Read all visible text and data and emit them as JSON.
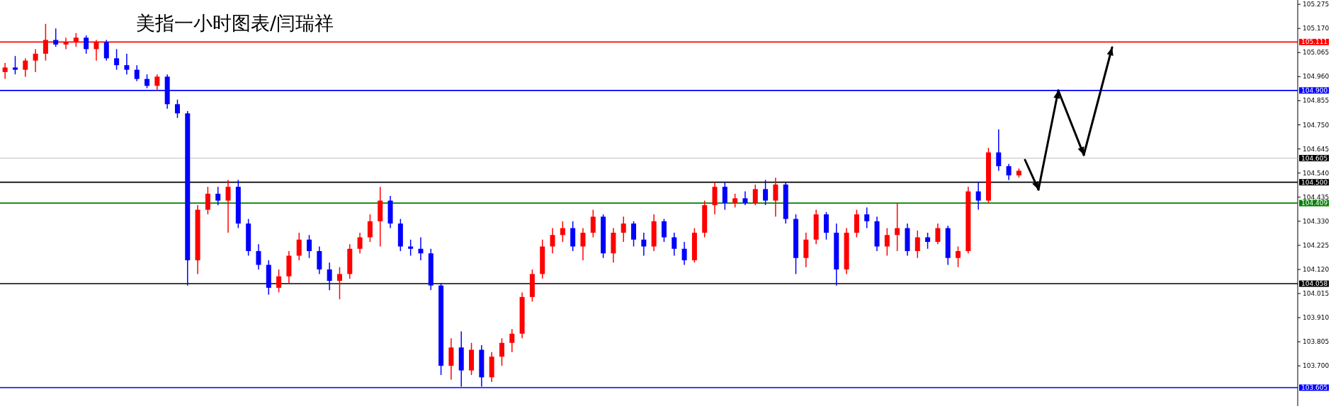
{
  "chart_data": {
    "type": "candlestick",
    "title": "美指一小时图表/闫瑞祥",
    "categories": [
      null,
      null,
      null,
      null,
      null,
      null,
      null,
      null,
      null,
      null,
      null,
      null,
      null,
      null,
      null,
      null,
      null,
      null,
      null,
      null,
      null,
      null,
      null,
      null,
      null,
      null,
      null,
      null,
      null,
      null,
      null,
      null,
      null,
      null,
      null,
      null,
      null,
      null,
      null,
      null,
      null,
      null,
      null,
      null,
      null,
      null,
      null,
      null,
      null,
      null,
      null,
      null,
      null,
      null,
      null,
      null,
      null,
      null,
      null,
      null,
      null,
      null,
      null,
      null,
      null,
      null,
      null,
      null,
      null,
      null,
      null,
      null,
      null,
      null,
      null,
      null,
      null,
      null,
      null,
      null,
      null,
      null,
      null,
      null,
      null,
      null,
      null,
      null,
      null,
      null,
      null,
      null,
      null,
      null,
      null,
      null,
      null,
      null,
      null,
      null,
      null,
      null,
      null,
      null,
      null,
      null,
      null,
      null,
      null,
      null,
      null,
      null,
      null,
      null,
      null,
      null,
      null,
      null,
      null,
      null,
      null,
      null,
      null,
      null,
      null,
      null,
      null,
      null
    ],
    "ohlc": [
      [
        104.98,
        105.02,
        104.95,
        105.0
      ],
      [
        105.0,
        105.05,
        104.97,
        104.99
      ],
      [
        104.99,
        105.04,
        104.96,
        105.03
      ],
      [
        105.03,
        105.08,
        104.98,
        105.06
      ],
      [
        105.06,
        105.19,
        105.03,
        105.12
      ],
      [
        105.12,
        105.17,
        105.09,
        105.1
      ],
      [
        105.1,
        105.13,
        105.08,
        105.11
      ],
      [
        105.11,
        105.15,
        105.09,
        105.13
      ],
      [
        105.13,
        105.14,
        105.06,
        105.08
      ],
      [
        105.08,
        105.12,
        105.03,
        105.11
      ],
      [
        105.11,
        105.12,
        105.03,
        105.04
      ],
      [
        105.04,
        105.08,
        104.99,
        105.01
      ],
      [
        105.01,
        105.06,
        104.97,
        104.99
      ],
      [
        104.99,
        105.01,
        104.94,
        104.95
      ],
      [
        104.95,
        104.97,
        104.91,
        104.92
      ],
      [
        104.92,
        104.97,
        104.9,
        104.96
      ],
      [
        104.96,
        104.97,
        104.82,
        104.84
      ],
      [
        104.84,
        104.86,
        104.78,
        104.8
      ],
      [
        104.8,
        104.81,
        104.05,
        104.16
      ],
      [
        104.16,
        104.4,
        104.1,
        104.38
      ],
      [
        104.38,
        104.48,
        104.36,
        104.45
      ],
      [
        104.45,
        104.48,
        104.4,
        104.42
      ],
      [
        104.42,
        104.51,
        104.28,
        104.48
      ],
      [
        104.48,
        104.51,
        104.3,
        104.32
      ],
      [
        104.32,
        104.34,
        104.18,
        104.2
      ],
      [
        104.2,
        104.23,
        104.12,
        104.14
      ],
      [
        104.14,
        104.16,
        104.01,
        104.04
      ],
      [
        104.04,
        104.12,
        104.02,
        104.09
      ],
      [
        104.09,
        104.2,
        104.06,
        104.18
      ],
      [
        104.18,
        104.28,
        104.16,
        104.25
      ],
      [
        104.25,
        104.27,
        104.17,
        104.2
      ],
      [
        104.2,
        104.22,
        104.1,
        104.12
      ],
      [
        104.12,
        104.15,
        104.03,
        104.07
      ],
      [
        104.07,
        104.13,
        103.99,
        104.1
      ],
      [
        104.1,
        104.23,
        104.08,
        104.21
      ],
      [
        104.21,
        104.28,
        104.19,
        104.26
      ],
      [
        104.26,
        104.36,
        104.24,
        104.33
      ],
      [
        104.33,
        104.48,
        104.22,
        104.42
      ],
      [
        104.42,
        104.44,
        104.3,
        104.32
      ],
      [
        104.32,
        104.34,
        104.2,
        104.22
      ],
      [
        104.22,
        104.25,
        104.18,
        104.21
      ],
      [
        104.21,
        104.26,
        104.16,
        104.19
      ],
      [
        104.19,
        104.21,
        104.03,
        104.05
      ],
      [
        104.05,
        104.06,
        103.66,
        103.7
      ],
      [
        103.7,
        103.82,
        103.64,
        103.78
      ],
      [
        103.78,
        103.85,
        103.61,
        103.68
      ],
      [
        103.68,
        103.8,
        103.66,
        103.77
      ],
      [
        103.77,
        103.79,
        103.61,
        103.65
      ],
      [
        103.65,
        103.76,
        103.63,
        103.74
      ],
      [
        103.74,
        103.82,
        103.7,
        103.8
      ],
      [
        103.8,
        103.86,
        103.76,
        103.84
      ],
      [
        103.84,
        104.02,
        103.82,
        104.0
      ],
      [
        104.0,
        104.12,
        103.98,
        104.1
      ],
      [
        104.1,
        104.25,
        104.08,
        104.22
      ],
      [
        104.22,
        104.3,
        104.19,
        104.27
      ],
      [
        104.27,
        104.33,
        104.24,
        104.3
      ],
      [
        104.3,
        104.33,
        104.2,
        104.22
      ],
      [
        104.22,
        104.3,
        104.16,
        104.28
      ],
      [
        104.28,
        104.38,
        104.26,
        104.35
      ],
      [
        104.35,
        104.36,
        104.17,
        104.19
      ],
      [
        104.19,
        104.3,
        104.15,
        104.28
      ],
      [
        104.28,
        104.35,
        104.24,
        104.32
      ],
      [
        104.32,
        104.33,
        104.22,
        104.25
      ],
      [
        104.25,
        104.28,
        104.18,
        104.22
      ],
      [
        104.22,
        104.36,
        104.2,
        104.33
      ],
      [
        104.33,
        104.34,
        104.24,
        104.26
      ],
      [
        104.26,
        104.28,
        104.18,
        104.21
      ],
      [
        104.21,
        104.24,
        104.14,
        104.16
      ],
      [
        104.16,
        104.3,
        104.15,
        104.28
      ],
      [
        104.28,
        104.42,
        104.26,
        104.4
      ],
      [
        104.4,
        104.5,
        104.36,
        104.48
      ],
      [
        104.48,
        104.5,
        104.38,
        104.41
      ],
      [
        104.41,
        104.45,
        104.39,
        104.43
      ],
      [
        104.43,
        104.46,
        104.4,
        104.41
      ],
      [
        104.41,
        104.49,
        104.4,
        104.47
      ],
      [
        104.47,
        104.51,
        104.4,
        104.42
      ],
      [
        104.42,
        104.52,
        104.35,
        104.49
      ],
      [
        104.49,
        104.5,
        104.32,
        104.34
      ],
      [
        104.34,
        104.36,
        104.1,
        104.17
      ],
      [
        104.17,
        104.28,
        104.13,
        104.25
      ],
      [
        104.25,
        104.38,
        104.23,
        104.36
      ],
      [
        104.36,
        104.37,
        104.25,
        104.28
      ],
      [
        104.28,
        104.32,
        104.05,
        104.12
      ],
      [
        104.12,
        104.3,
        104.1,
        104.28
      ],
      [
        104.28,
        104.38,
        104.26,
        104.36
      ],
      [
        104.36,
        104.39,
        104.3,
        104.33
      ],
      [
        104.33,
        104.35,
        104.2,
        104.22
      ],
      [
        104.22,
        104.3,
        104.18,
        104.27
      ],
      [
        104.27,
        104.41,
        104.2,
        104.3
      ],
      [
        104.3,
        104.32,
        104.18,
        104.2
      ],
      [
        104.2,
        104.29,
        104.17,
        104.26
      ],
      [
        104.26,
        104.28,
        104.21,
        104.24
      ],
      [
        104.24,
        104.32,
        104.23,
        104.3
      ],
      [
        104.3,
        104.31,
        104.14,
        104.17
      ],
      [
        104.17,
        104.22,
        104.13,
        104.2
      ],
      [
        104.2,
        104.48,
        104.19,
        104.46
      ],
      [
        104.46,
        104.5,
        104.38,
        104.42
      ],
      [
        104.42,
        104.65,
        104.41,
        104.63
      ],
      [
        104.63,
        104.73,
        104.55,
        104.57
      ],
      [
        104.57,
        104.58,
        104.51,
        104.53
      ],
      [
        104.53,
        104.56,
        104.52,
        104.55
      ],
      null,
      null,
      null,
      null,
      null,
      null,
      null,
      null,
      null,
      null,
      null,
      null,
      null,
      null,
      null,
      null,
      null,
      null,
      null,
      null,
      null,
      null,
      null,
      null,
      null,
      null,
      null
    ],
    "colors": [
      "#ff0000",
      "#0000ff",
      "#ff0000",
      "#ff0000",
      "#ff0000",
      "#0000ff",
      "#ff0000",
      "#ff0000",
      "#0000ff",
      "#ff0000",
      "#0000ff",
      "#0000ff",
      "#0000ff",
      "#0000ff",
      "#0000ff",
      "#ff0000",
      "#0000ff",
      "#0000ff",
      "#0000ff",
      "#ff0000",
      "#ff0000",
      "#0000ff",
      "#ff0000",
      "#0000ff",
      "#0000ff",
      "#0000ff",
      "#0000ff",
      "#ff0000",
      "#ff0000",
      "#ff0000",
      "#0000ff",
      "#0000ff",
      "#0000ff",
      "#ff0000",
      "#ff0000",
      "#ff0000",
      "#ff0000",
      "#ff0000",
      "#0000ff",
      "#0000ff",
      "#0000ff",
      "#0000ff",
      "#0000ff",
      "#0000ff",
      "#ff0000",
      "#0000ff",
      "#ff0000",
      "#0000ff",
      "#ff0000",
      "#ff0000",
      "#ff0000",
      "#ff0000",
      "#ff0000",
      "#ff0000",
      "#ff0000",
      "#ff0000",
      "#0000ff",
      "#ff0000",
      "#ff0000",
      "#0000ff",
      "#ff0000",
      "#ff0000",
      "#0000ff",
      "#0000ff",
      "#ff0000",
      "#0000ff",
      "#0000ff",
      "#0000ff",
      "#ff0000",
      "#ff0000",
      "#ff0000",
      "#0000ff",
      "#ff0000",
      "#0000ff",
      "#ff0000",
      "#0000ff",
      "#ff0000",
      "#0000ff",
      "#0000ff",
      "#ff0000",
      "#ff0000",
      "#0000ff",
      "#0000ff",
      "#ff0000",
      "#ff0000",
      "#0000ff",
      "#0000ff",
      "#ff0000",
      "#ff0000",
      "#0000ff",
      "#ff0000",
      "#0000ff",
      "#ff0000",
      "#0000ff",
      "#ff0000",
      "#ff0000",
      "#0000ff",
      "#ff0000",
      "#0000ff",
      "#0000ff",
      "#ff0000",
      null,
      null,
      null,
      null,
      null,
      null,
      null,
      null,
      null,
      null,
      null,
      null,
      null,
      null,
      null,
      null,
      null,
      null,
      null,
      null,
      null,
      null,
      null,
      null,
      null,
      null,
      null
    ],
    "ylim": [
      103.525,
      105.294
    ],
    "yticks": [
      105.275,
      {
        "value": 105.17,
        "label": "105.170"
      },
      105.065,
      {
        "value": 104.96,
        "label": "104.960"
      },
      104.855,
      {
        "value": 104.75,
        "label": "104.750"
      },
      104.645,
      {
        "value": 104.54,
        "label": "104.540"
      },
      104.435,
      {
        "value": 104.33,
        "label": "104.330"
      },
      104.225,
      {
        "value": 104.12,
        "label": "104.120"
      },
      104.015,
      {
        "value": 103.91,
        "label": "103.910"
      },
      103.805,
      {
        "value": 103.7,
        "label": "103.700"
      }
    ],
    "ref_lines": [
      {
        "axis": "y",
        "value": 105.111,
        "label": "105.111",
        "color": "#ff0000"
      },
      {
        "axis": "y",
        "value": 104.9,
        "label": "104.900",
        "color": "#0000ff"
      },
      {
        "axis": "y",
        "value": 104.605,
        "label": "104.605",
        "color": "#c0c0c0"
      },
      {
        "axis": "y",
        "value": 104.5,
        "label": "104.500",
        "color": "#000000"
      },
      {
        "axis": "y",
        "value": 104.409,
        "label": "104.409",
        "color": "#008000"
      },
      {
        "axis": "y",
        "value": 104.058,
        "label": "104.058",
        "color": "#000000"
      },
      {
        "axis": "y",
        "value": 103.605,
        "label": "103.605",
        "color": "#0000ff"
      }
    ]
  }
}
